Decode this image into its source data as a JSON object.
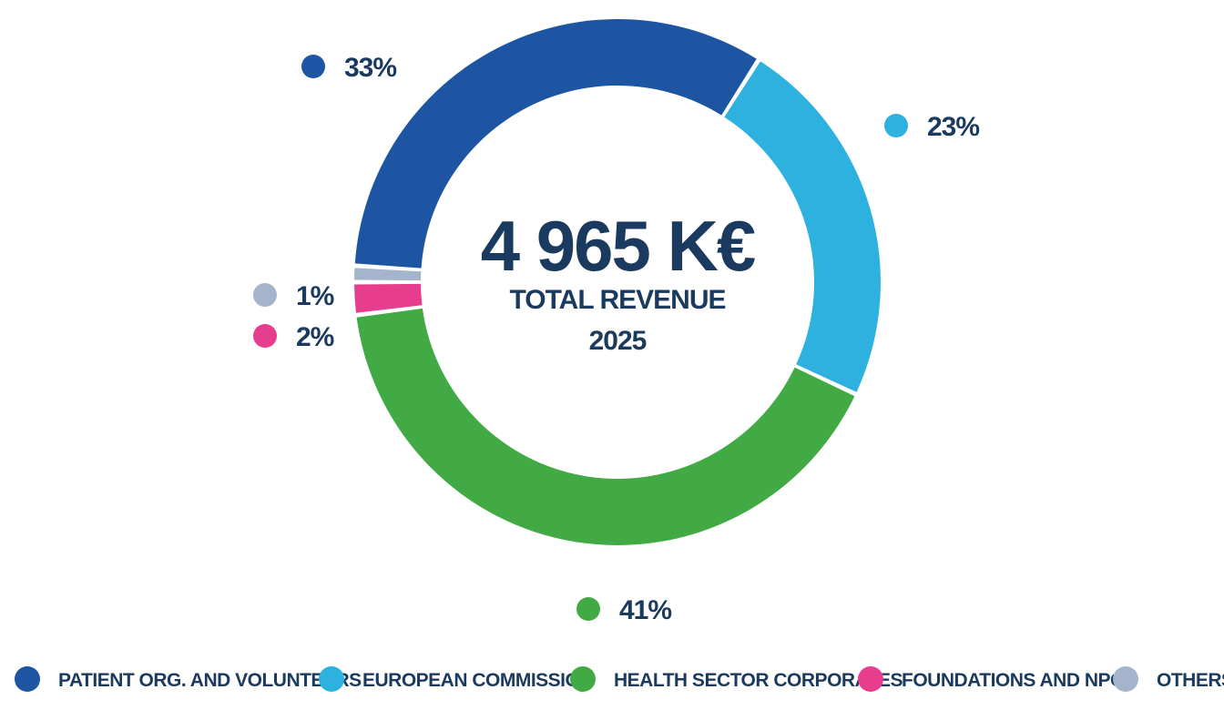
{
  "chart_data": {
    "type": "pie",
    "center": {
      "total": "4 965 K€",
      "label": "TOTAL REVENUE",
      "year": "2025"
    },
    "series": [
      {
        "name": "PATIENT ORG. AND VOLUNTEERS",
        "value": 33,
        "label": "33%",
        "color": "#1e55a3"
      },
      {
        "name": "EUROPEAN COMMISSION",
        "value": 23,
        "label": "23%",
        "color": "#2db2e0"
      },
      {
        "name": "HEALTH SECTOR CORPORATES",
        "value": 41,
        "label": "41%",
        "color": "#41aa44"
      },
      {
        "name": "FOUNDATIONS AND NPOS",
        "value": 2,
        "label": "2%",
        "color": "#e63d8f"
      },
      {
        "name": "OTHERS",
        "value": 1,
        "label": "1%",
        "color": "#a3b4cc"
      }
    ],
    "legend_position": "bottom"
  }
}
